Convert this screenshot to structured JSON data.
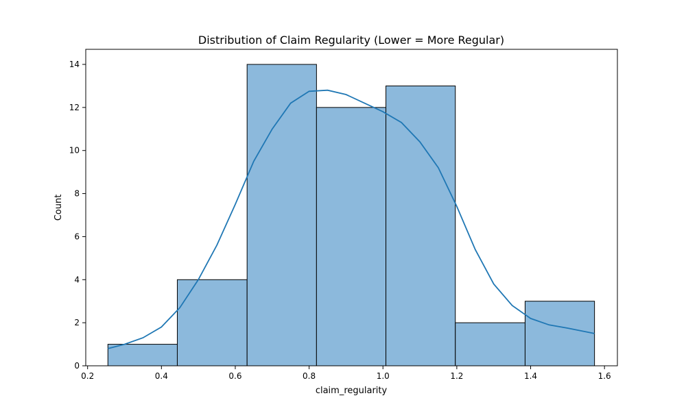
{
  "chart_data": {
    "type": "bar",
    "title": "Distribution of Claim Regularity (Lower = More Regular)",
    "xlabel": "claim_regularity",
    "ylabel": "Count",
    "xlim": [
      0.195,
      1.635
    ],
    "ylim": [
      0,
      14.7
    ],
    "xticks": [
      0.2,
      0.4,
      0.6,
      0.8,
      1.0,
      1.2,
      1.4,
      1.6
    ],
    "xtick_labels": [
      "0.2",
      "0.4",
      "0.6",
      "0.8",
      "1.0",
      "1.2",
      "1.4",
      "1.6"
    ],
    "yticks": [
      0,
      2,
      4,
      6,
      8,
      10,
      12,
      14
    ],
    "ytick_labels": [
      "0",
      "2",
      "4",
      "6",
      "8",
      "10",
      "12",
      "14"
    ],
    "bins": [
      {
        "start": 0.255,
        "end": 0.443,
        "count": 1
      },
      {
        "start": 0.443,
        "end": 0.632,
        "count": 4
      },
      {
        "start": 0.632,
        "end": 0.82,
        "count": 14
      },
      {
        "start": 0.82,
        "end": 1.008,
        "count": 12
      },
      {
        "start": 1.008,
        "end": 1.196,
        "count": 13
      },
      {
        "start": 1.196,
        "end": 1.385,
        "count": 2
      },
      {
        "start": 1.385,
        "end": 1.573,
        "count": 3
      }
    ],
    "kde": {
      "x": [
        0.255,
        0.3,
        0.35,
        0.4,
        0.45,
        0.5,
        0.55,
        0.6,
        0.65,
        0.7,
        0.75,
        0.8,
        0.85,
        0.9,
        0.95,
        1.0,
        1.05,
        1.1,
        1.15,
        1.2,
        1.25,
        1.3,
        1.35,
        1.4,
        1.45,
        1.5,
        1.573
      ],
      "y": [
        0.8,
        1.0,
        1.3,
        1.8,
        2.7,
        4.0,
        5.6,
        7.5,
        9.5,
        11.0,
        12.2,
        12.75,
        12.8,
        12.6,
        12.2,
        11.8,
        11.3,
        10.4,
        9.2,
        7.4,
        5.4,
        3.8,
        2.8,
        2.2,
        1.9,
        1.75,
        1.5
      ]
    },
    "grid": false,
    "colors": {
      "bar_fill": "#8cb9dc",
      "bar_edge": "#000000",
      "kde_line": "#1f77b4"
    }
  }
}
